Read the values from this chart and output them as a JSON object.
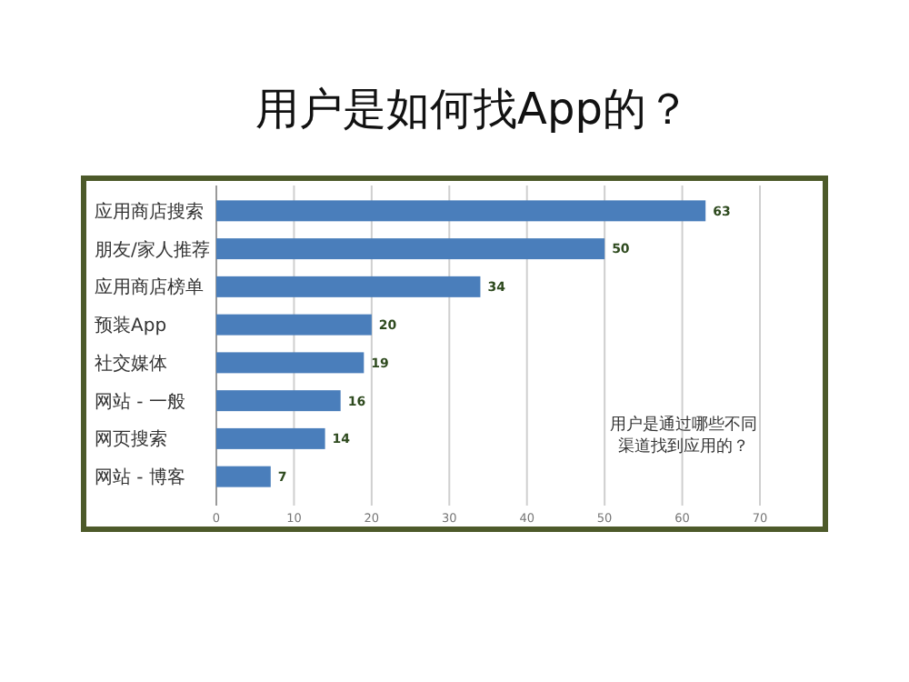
{
  "chart_data": {
    "type": "bar",
    "orientation": "horizontal",
    "title": "用户是如何找App的？",
    "categories": [
      "应用商店搜索",
      "朋友/家人推荐",
      "应用商店榜单",
      "预装App",
      "社交媒体",
      "网站 - 一般",
      "网页搜索",
      "网站 - 博客"
    ],
    "values": [
      63,
      50,
      34,
      20,
      19,
      16,
      14,
      7
    ],
    "color": "#4a7ebb",
    "xlim": [
      0,
      70
    ],
    "xticks": [
      0,
      10,
      20,
      30,
      40,
      50,
      60,
      70
    ],
    "grid": "x",
    "data_labels": true,
    "annotations": [
      "用户是通过哪些不同渠道找到应用的？"
    ]
  }
}
